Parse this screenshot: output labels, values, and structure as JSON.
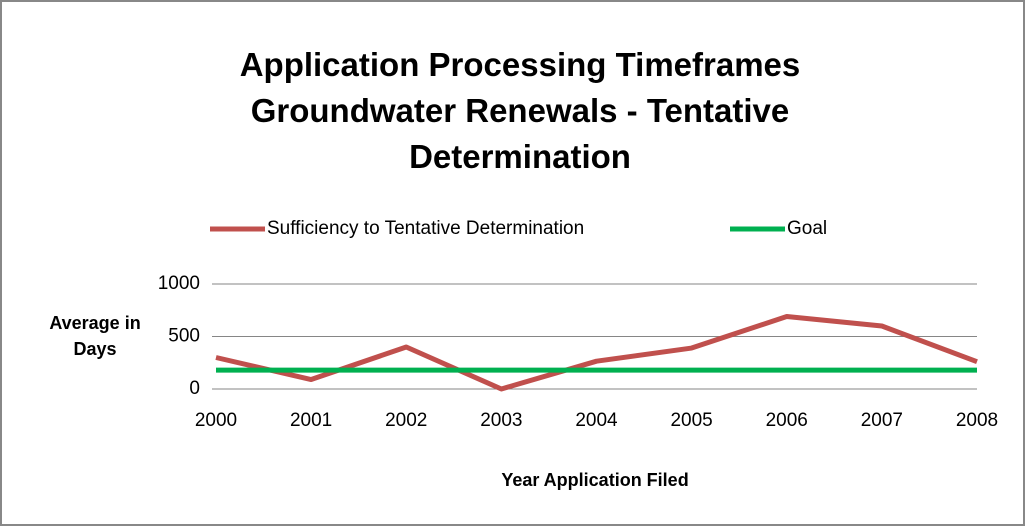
{
  "chart_data": {
    "type": "line",
    "title": "Application Processing Timeframes Groundwater Renewals - Tentative Determination",
    "x_label": "Year Application Filed",
    "y_label": "Average in Days",
    "categories": [
      "2000",
      "2001",
      "2002",
      "2003",
      "2004",
      "2005",
      "2006",
      "2007",
      "2008"
    ],
    "series": [
      {
        "name": "Sufficiency to Tentative Determination",
        "color": "#c0504d",
        "values": [
          300,
          90,
          400,
          0,
          265,
          390,
          690,
          600,
          260
        ]
      },
      {
        "name": "Goal",
        "color": "#00b050",
        "values": [
          180,
          180,
          180,
          180,
          180,
          180,
          180,
          180,
          180
        ]
      }
    ],
    "ylim": [
      0,
      1000
    ],
    "yticks": [
      0,
      500,
      1000
    ],
    "grid": true,
    "legend": "top"
  }
}
